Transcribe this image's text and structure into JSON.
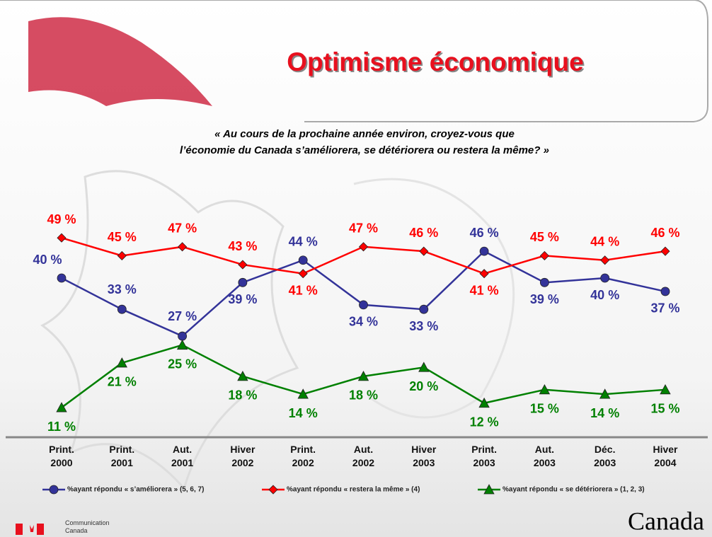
{
  "chart_data": {
    "type": "line",
    "title": "Optimisme économique",
    "subtitle": "« Au cours de la prochaine année environ, croyez-vous que\nl’économie du Canada s’améliorera, se détériorera ou restera la même? »",
    "categories": [
      "Print.\n2000",
      "Print.\n2001",
      "Aut.\n2001",
      "Hiver\n2002",
      "Print.\n2002",
      "Aut.\n2002",
      "Hiver\n2003",
      "Print.\n2003",
      "Aut.\n2003",
      "Déc.\n2003",
      "Hiver\n2004"
    ],
    "ylim": [
      8,
      56
    ],
    "legend": "bottom",
    "series": [
      {
        "name": "%ayant répondu « s’améliorera » (5, 6, 7)",
        "color": "#333399",
        "marker": "circle",
        "values": [
          40,
          33,
          27,
          39,
          44,
          34,
          33,
          46,
          39,
          40,
          37
        ],
        "value_labels": [
          "40 %",
          "33 %",
          "27 %",
          "39 %",
          "44 %",
          "34 %",
          "33 %",
          "46 %",
          "39 %",
          "40 %",
          "37 %"
        ]
      },
      {
        "name": "%ayant répondu « restera la même » (4)",
        "color": "#ff0000",
        "marker": "diamond",
        "values": [
          49,
          45,
          47,
          43,
          41,
          47,
          46,
          41,
          45,
          44,
          46
        ],
        "value_labels": [
          "49 %",
          "45 %",
          "47 %",
          "43 %",
          "41 %",
          "47 %",
          "46 %",
          "41 %",
          "45 %",
          "44 %",
          "46 %"
        ]
      },
      {
        "name": "%ayant répondu « se détériorera » (1, 2, 3)",
        "color": "#008000",
        "marker": "triangle",
        "values": [
          11,
          21,
          25,
          18,
          14,
          18,
          20,
          12,
          15,
          14,
          15
        ],
        "value_labels": [
          "11 %",
          "21 %",
          "25 %",
          "18 %",
          "14 %",
          "18 %",
          "20 %",
          "12 %",
          "15 %",
          "14 %",
          "15 %"
        ]
      }
    ]
  },
  "footer": {
    "department": "Communication\nCanada",
    "wordmark": "Canada"
  }
}
